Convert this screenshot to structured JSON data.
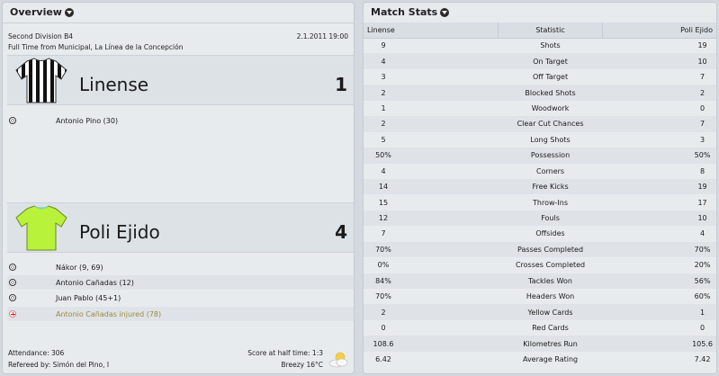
{
  "overview": {
    "title": "Overview",
    "competition": "Second Division B4",
    "date_time": "2.1.2011 19:00",
    "venue_line": "Full Time from Municipal, La Línea de la Concepción",
    "home": {
      "name": "Linense",
      "score": "1",
      "shirt_colors": [
        "#111111",
        "#ffffff"
      ],
      "events": [
        {
          "icon": "ball-icon",
          "text": "Antonio Pino (30)"
        }
      ]
    },
    "away": {
      "name": "Poli Ejido",
      "score": "4",
      "shirt_colors": [
        "#b8f23a",
        "#7fd0c8"
      ],
      "events": [
        {
          "icon": "ball-icon",
          "text": "Nákor (9, 69)"
        },
        {
          "icon": "ball-icon",
          "text": "Antonio Cañadas (12)"
        },
        {
          "icon": "ball-icon",
          "text": "Juan Pablo (45+1)"
        },
        {
          "icon": "injury-icon",
          "text": "Antonio Cañadas injured (78)"
        }
      ]
    },
    "attendance": "Attendance: 306",
    "referee": "Refereed by: Simón del Pino, I",
    "half_time": "Score at half time: 1:3",
    "weather": "Breezy 16°C",
    "weather_icon": "sun-cloud-icon"
  },
  "stats": {
    "title": "Match Stats",
    "headers": [
      "Linense",
      "Statistic",
      "Poli Ejido"
    ],
    "rows": [
      [
        "9",
        "Shots",
        "19"
      ],
      [
        "4",
        "On Target",
        "10"
      ],
      [
        "3",
        "Off Target",
        "7"
      ],
      [
        "2",
        "Blocked Shots",
        "2"
      ],
      [
        "1",
        "Woodwork",
        "0"
      ],
      [
        "2",
        "Clear Cut Chances",
        "7"
      ],
      [
        "5",
        "Long Shots",
        "3"
      ],
      [
        "50%",
        "Possession",
        "50%"
      ],
      [
        "4",
        "Corners",
        "8"
      ],
      [
        "14",
        "Free Kicks",
        "19"
      ],
      [
        "15",
        "Throw-Ins",
        "17"
      ],
      [
        "12",
        "Fouls",
        "10"
      ],
      [
        "7",
        "Offsides",
        "4"
      ],
      [
        "70%",
        "Passes Completed",
        "70%"
      ],
      [
        "0%",
        "Crosses Completed",
        "20%"
      ],
      [
        "84%",
        "Tackles Won",
        "56%"
      ],
      [
        "70%",
        "Headers Won",
        "60%"
      ],
      [
        "2",
        "Yellow Cards",
        "1"
      ],
      [
        "0",
        "Red Cards",
        "0"
      ],
      [
        "108.6",
        "Kilometres Run",
        "105.6"
      ],
      [
        "6.42",
        "Average Rating",
        "7.42"
      ]
    ]
  }
}
